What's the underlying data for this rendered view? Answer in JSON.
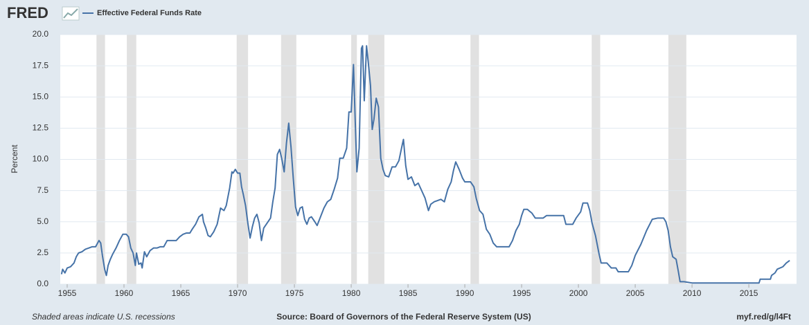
{
  "logo": "FRED",
  "chart_data": {
    "type": "line",
    "title": "Effective Federal Funds Rate",
    "y_label": "Percent",
    "note": "Shaded areas indicate U.S. recessions",
    "source": "Source: Board of Governors of the Federal Reserve System (US)",
    "link": "myf.red/g/l4Ft",
    "xlim": [
      1954.39,
      2019.2
    ],
    "xticks": [
      1955,
      1960,
      1965,
      1970,
      1975,
      1980,
      1985,
      1990,
      1995,
      2000,
      2005,
      2010,
      2015
    ],
    "ylim": [
      0,
      20
    ],
    "yticks": [
      {
        "value": 0,
        "label": "0.0"
      },
      {
        "value": 2.5,
        "label": "2.5"
      },
      {
        "value": 5,
        "label": "5.0"
      },
      {
        "value": 7.5,
        "label": "7.5"
      },
      {
        "value": 10,
        "label": "10.0"
      },
      {
        "value": 12.5,
        "label": "12.5"
      },
      {
        "value": 15,
        "label": "15.0"
      },
      {
        "value": 17.5,
        "label": "17.5"
      },
      {
        "value": 20,
        "label": "20.0"
      }
    ],
    "grid": true,
    "recession_color": "#e1e1e1",
    "recessions": [
      [
        1957.58,
        1958.33
      ],
      [
        1960.25,
        1961.08
      ],
      [
        1969.92,
        1970.92
      ],
      [
        1973.83,
        1975.17
      ],
      [
        1980.0,
        1980.5
      ],
      [
        1981.5,
        1982.92
      ],
      [
        1990.5,
        1991.25
      ],
      [
        2001.17,
        2001.92
      ],
      [
        2007.92,
        2009.5
      ]
    ],
    "x": [
      1954.5,
      1954.6,
      1954.8,
      1955.0,
      1955.3,
      1955.6,
      1955.8,
      1956.0,
      1956.3,
      1956.6,
      1956.9,
      1957.2,
      1957.5,
      1957.8,
      1957.95,
      1958.1,
      1958.3,
      1958.45,
      1958.6,
      1958.8,
      1959.0,
      1959.3,
      1959.6,
      1959.9,
      1960.2,
      1960.4,
      1960.6,
      1960.8,
      1961.0,
      1961.1,
      1961.3,
      1961.5,
      1961.6,
      1961.8,
      1962.0,
      1962.3,
      1962.6,
      1962.9,
      1963.2,
      1963.5,
      1963.8,
      1964.0,
      1964.3,
      1964.6,
      1964.9,
      1965.2,
      1965.5,
      1965.8,
      1966.0,
      1966.3,
      1966.6,
      1966.9,
      1967.0,
      1967.2,
      1967.4,
      1967.6,
      1967.9,
      1968.2,
      1968.5,
      1968.8,
      1969.0,
      1969.3,
      1969.5,
      1969.6,
      1969.8,
      1970.0,
      1970.2,
      1970.35,
      1970.5,
      1970.7,
      1970.9,
      1971.1,
      1971.3,
      1971.5,
      1971.7,
      1971.9,
      1972.1,
      1972.3,
      1972.6,
      1972.9,
      1973.1,
      1973.3,
      1973.5,
      1973.7,
      1973.9,
      1974.1,
      1974.3,
      1974.5,
      1974.7,
      1974.9,
      1975.1,
      1975.3,
      1975.5,
      1975.7,
      1975.9,
      1976.1,
      1976.3,
      1976.5,
      1976.8,
      1977.0,
      1977.3,
      1977.6,
      1977.9,
      1978.2,
      1978.5,
      1978.8,
      1979.0,
      1979.3,
      1979.6,
      1979.8,
      1980.0,
      1980.2,
      1980.35,
      1980.5,
      1980.7,
      1980.9,
      1981.0,
      1981.15,
      1981.35,
      1981.5,
      1981.7,
      1981.85,
      1982.0,
      1982.2,
      1982.4,
      1982.6,
      1982.8,
      1983.0,
      1983.3,
      1983.6,
      1983.9,
      1984.2,
      1984.5,
      1984.6,
      1984.8,
      1985.0,
      1985.3,
      1985.6,
      1985.9,
      1986.2,
      1986.5,
      1986.8,
      1987.0,
      1987.3,
      1987.6,
      1987.9,
      1988.2,
      1988.5,
      1988.8,
      1989.0,
      1989.2,
      1989.5,
      1989.8,
      1990.0,
      1990.5,
      1990.8,
      1991.0,
      1991.3,
      1991.6,
      1991.9,
      1992.2,
      1992.5,
      1992.8,
      1993.0,
      1993.5,
      1993.9,
      1994.2,
      1994.5,
      1994.8,
      1995.0,
      1995.2,
      1995.5,
      1995.9,
      1996.2,
      1996.5,
      1996.9,
      1997.2,
      1997.6,
      1997.9,
      1998.3,
      1998.7,
      1998.9,
      1999.2,
      1999.5,
      1999.8,
      2000.2,
      2000.4,
      2000.8,
      2001.0,
      2001.2,
      2001.5,
      2001.8,
      2002.0,
      2002.5,
      2002.9,
      2003.3,
      2003.5,
      2004.0,
      2004.4,
      2004.7,
      2005.0,
      2005.5,
      2006.0,
      2006.5,
      2007.0,
      2007.5,
      2007.7,
      2007.9,
      2008.1,
      2008.3,
      2008.6,
      2008.8,
      2008.95,
      2009.3,
      2010.0,
      2011.0,
      2012.0,
      2013.0,
      2014.0,
      2015.0,
      2015.9,
      2016.0,
      2016.9,
      2017.0,
      2017.3,
      2017.5,
      2018.0,
      2018.3,
      2018.6
    ],
    "series": [
      {
        "name": "Effective Federal Funds Rate",
        "color": "#4572a7",
        "values": [
          0.8,
          1.2,
          0.9,
          1.3,
          1.4,
          1.7,
          2.2,
          2.5,
          2.6,
          2.8,
          2.9,
          3.0,
          3.0,
          3.5,
          3.3,
          2.3,
          1.2,
          0.7,
          1.5,
          2.0,
          2.4,
          2.9,
          3.5,
          4.0,
          4.0,
          3.8,
          2.9,
          2.5,
          1.5,
          2.5,
          1.6,
          1.7,
          1.3,
          2.6,
          2.2,
          2.7,
          2.9,
          2.9,
          3.0,
          3.0,
          3.5,
          3.5,
          3.5,
          3.5,
          3.8,
          4.0,
          4.1,
          4.1,
          4.4,
          4.8,
          5.4,
          5.6,
          5.0,
          4.5,
          3.9,
          3.8,
          4.2,
          4.8,
          6.1,
          5.9,
          6.3,
          7.7,
          9.0,
          8.9,
          9.2,
          8.9,
          8.9,
          7.8,
          7.2,
          6.3,
          4.9,
          3.7,
          4.6,
          5.3,
          5.6,
          4.9,
          3.5,
          4.5,
          4.9,
          5.3,
          6.6,
          7.7,
          10.4,
          10.8,
          10.0,
          9.0,
          11.3,
          12.9,
          11.0,
          8.5,
          6.2,
          5.5,
          6.1,
          6.2,
          5.2,
          4.8,
          5.3,
          5.4,
          5.0,
          4.7,
          5.4,
          6.1,
          6.6,
          6.8,
          7.6,
          8.5,
          10.1,
          10.1,
          10.9,
          13.8,
          13.8,
          17.6,
          13.2,
          9.0,
          10.9,
          18.9,
          19.1,
          14.7,
          19.1,
          17.8,
          15.9,
          12.4,
          13.2,
          14.9,
          14.2,
          10.1,
          9.2,
          8.7,
          8.6,
          9.4,
          9.4,
          9.9,
          11.2,
          11.6,
          9.5,
          8.4,
          8.6,
          7.9,
          8.1,
          7.5,
          6.9,
          5.9,
          6.4,
          6.6,
          6.7,
          6.8,
          6.6,
          7.6,
          8.2,
          9.1,
          9.8,
          9.2,
          8.5,
          8.2,
          8.2,
          7.8,
          6.9,
          5.9,
          5.6,
          4.4,
          4.0,
          3.3,
          3.0,
          3.0,
          3.0,
          3.0,
          3.5,
          4.3,
          4.8,
          5.5,
          6.0,
          6.0,
          5.7,
          5.3,
          5.3,
          5.3,
          5.5,
          5.5,
          5.5,
          5.5,
          5.5,
          4.8,
          4.8,
          4.8,
          5.3,
          5.8,
          6.5,
          6.5,
          5.9,
          4.9,
          3.9,
          2.5,
          1.7,
          1.7,
          1.3,
          1.3,
          1.0,
          1.0,
          1.0,
          1.5,
          2.3,
          3.2,
          4.3,
          5.2,
          5.3,
          5.3,
          5.0,
          4.3,
          3.0,
          2.2,
          2.0,
          1.0,
          0.2,
          0.2,
          0.1,
          0.1,
          0.1,
          0.1,
          0.1,
          0.1,
          0.1,
          0.4,
          0.4,
          0.7,
          0.9,
          1.2,
          1.4,
          1.7,
          1.9
        ]
      }
    ]
  }
}
